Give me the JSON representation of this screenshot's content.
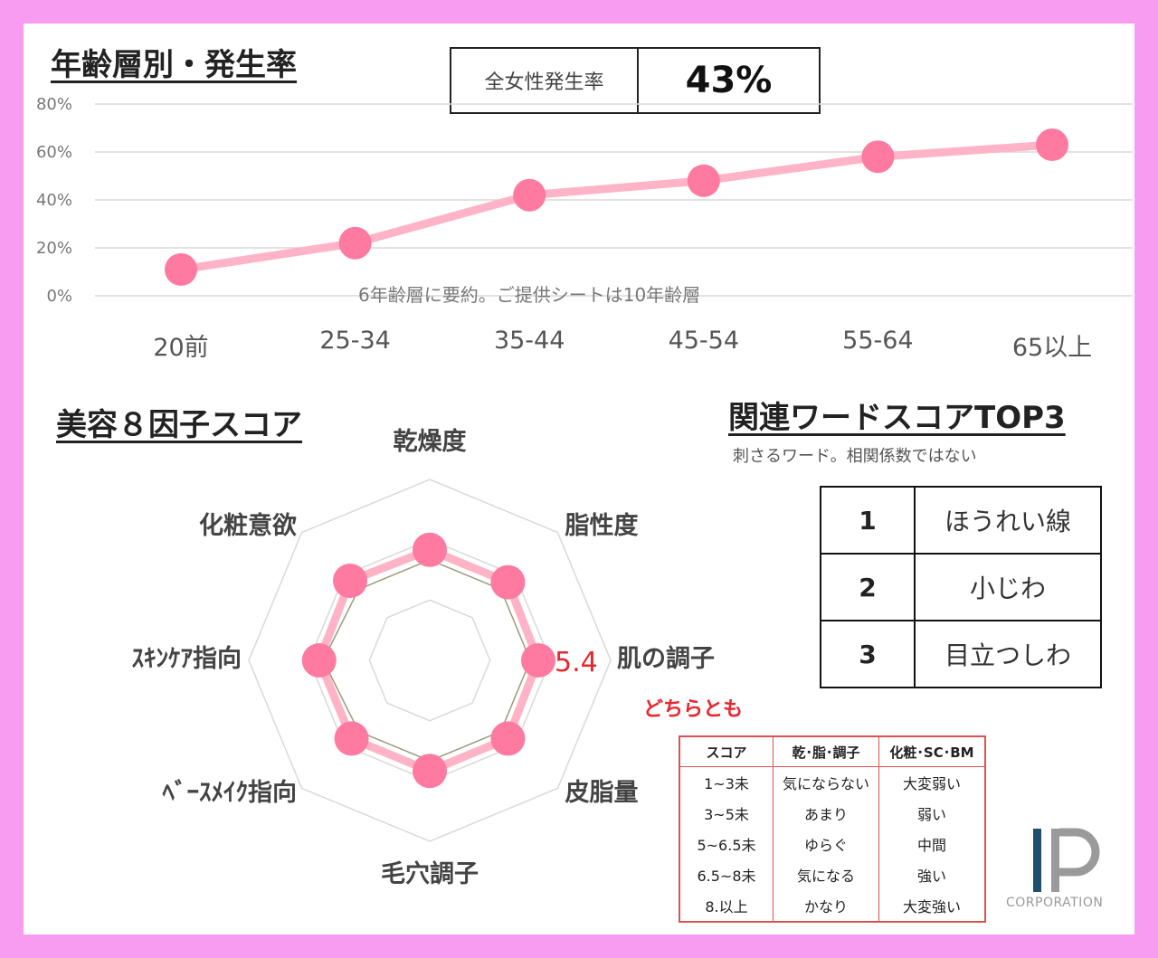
{
  "age_chart": {
    "heading": "年齢層別・発生率",
    "rate_label": "全女性発生率",
    "rate_value": "43%",
    "note": "6年齢層に要約。ご提供シートは10年齢層"
  },
  "radar_chart": {
    "heading": "美容８因子スコア",
    "value_label": "5.4"
  },
  "related_words": {
    "heading": "関連ワードスコアTOP3",
    "subtitle": "刺さるワード。相関係数ではない",
    "rows": [
      {
        "rank": "1",
        "word": "ほうれい線"
      },
      {
        "rank": "2",
        "word": "小じわ"
      },
      {
        "rank": "3",
        "word": "目立つしわ"
      }
    ]
  },
  "score_legend": {
    "title": "どちらとも",
    "headers": [
      "スコア",
      "乾･脂･調子",
      "化粧･SC･BM"
    ],
    "rows": [
      [
        "1~3未",
        "気にならない",
        "大変弱い"
      ],
      [
        "3~5未",
        "あまり",
        "弱い"
      ],
      [
        "5~6.5未",
        "ゆらぐ",
        "中間"
      ],
      [
        "6.5~8未",
        "気になる",
        "強い"
      ],
      [
        "8.以上",
        "かなり",
        "大変強い"
      ]
    ]
  },
  "logo": {
    "text": "CORPORATION",
    "brand_color": "#1f4e6e"
  },
  "colors": {
    "frame": "#f79cf1",
    "series": "#ff7aa0",
    "line": "#ffb3c6",
    "legend_border": "#d9534f"
  },
  "chart_data": [
    {
      "type": "line",
      "categories": [
        "20前",
        "25-34",
        "35-44",
        "45-54",
        "55-64",
        "65以上"
      ],
      "values": [
        11,
        22,
        42,
        48,
        58,
        63
      ],
      "yticks": [
        "0%",
        "20%",
        "40%",
        "60%",
        "80%"
      ],
      "ylim": [
        0,
        80
      ],
      "grid": true
    },
    {
      "type": "radar",
      "axes": [
        "乾燥度",
        "脂性度",
        "肌の調子",
        "皮脂量",
        "毛穴調子",
        "ﾍﾞｰｽﾒｲｸ指向",
        "ｽｷﾝｹｱ指向",
        "化粧意欲"
      ],
      "series_main": [
        5.5,
        5.5,
        5.4,
        5.5,
        5.5,
        5.5,
        5.5,
        5.6
      ],
      "series_secondary": [
        5.0,
        5.0,
        5.0,
        5.0,
        5.0,
        5.0,
        5.3,
        5.0
      ],
      "rlim": [
        0,
        10
      ],
      "grid_levels": [
        3,
        6,
        9
      ]
    }
  ]
}
